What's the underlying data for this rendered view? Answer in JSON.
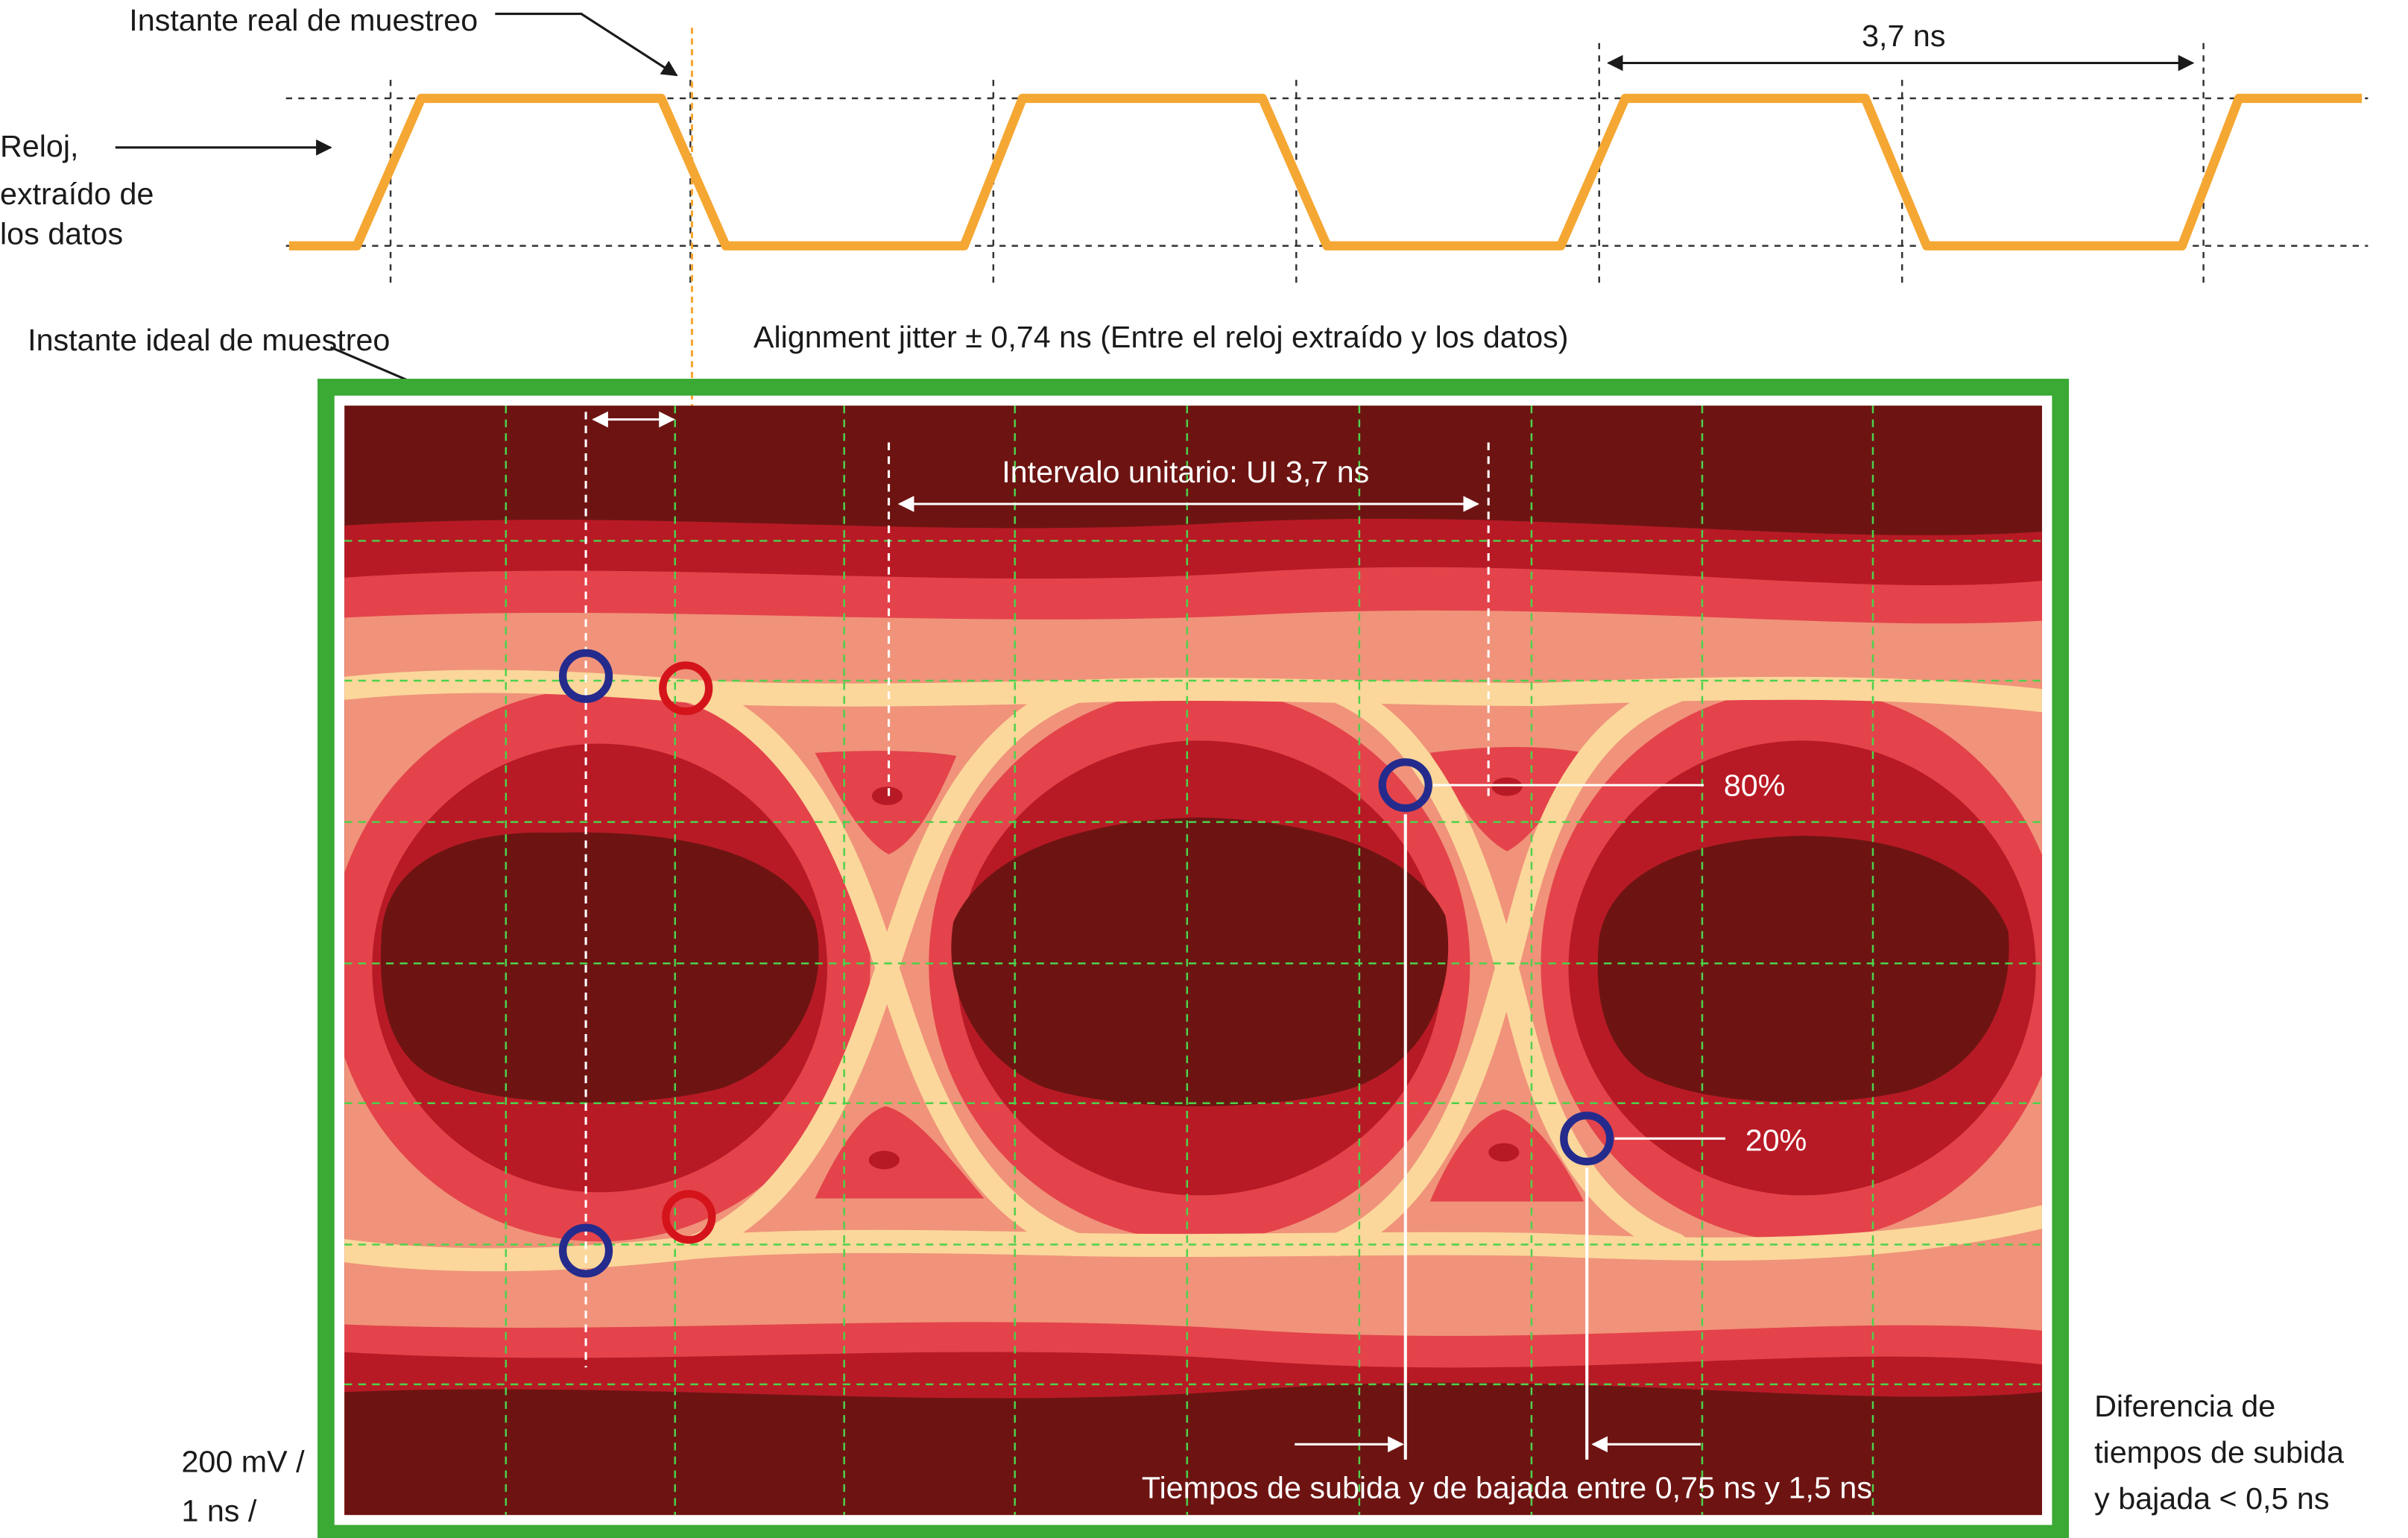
{
  "labels": {
    "real_sampling": "Instante real de muestreo",
    "clock_line1": "Reloj,",
    "clock_line2": "extraído de",
    "clock_line3": "los datos",
    "period": "3,7 ns",
    "ideal_sampling": "Instante ideal de muestreo",
    "alignment_jitter": "Alignment jitter ± 0,74 ns (Entre el reloj extraído y los datos)",
    "unit_interval": "Intervalo unitario: UI 3,7 ns",
    "pct_80": "80%",
    "pct_20": "20%",
    "rise_fall_times": "Tiempos de subida y de bajada entre 0,75 ns y 1,5 ns",
    "scale_line1": "200 mV /",
    "scale_line2": "1 ns /",
    "diff_line1": "Diferencia de",
    "diff_line2": "tiempos de subida",
    "diff_line3": "y bajada < 0,5 ns"
  },
  "colors": {
    "clock": "#f5a733",
    "frame": "#3aaa35",
    "grid": "#4cd24c",
    "band_darkest": "#6d1412",
    "band_dark": "#b81a25",
    "band_mid": "#e4434b",
    "band_light": "#f0937a",
    "trace": "#fbd79b",
    "ideal_marker": "#242b8c",
    "real_marker": "#d4141a"
  }
}
